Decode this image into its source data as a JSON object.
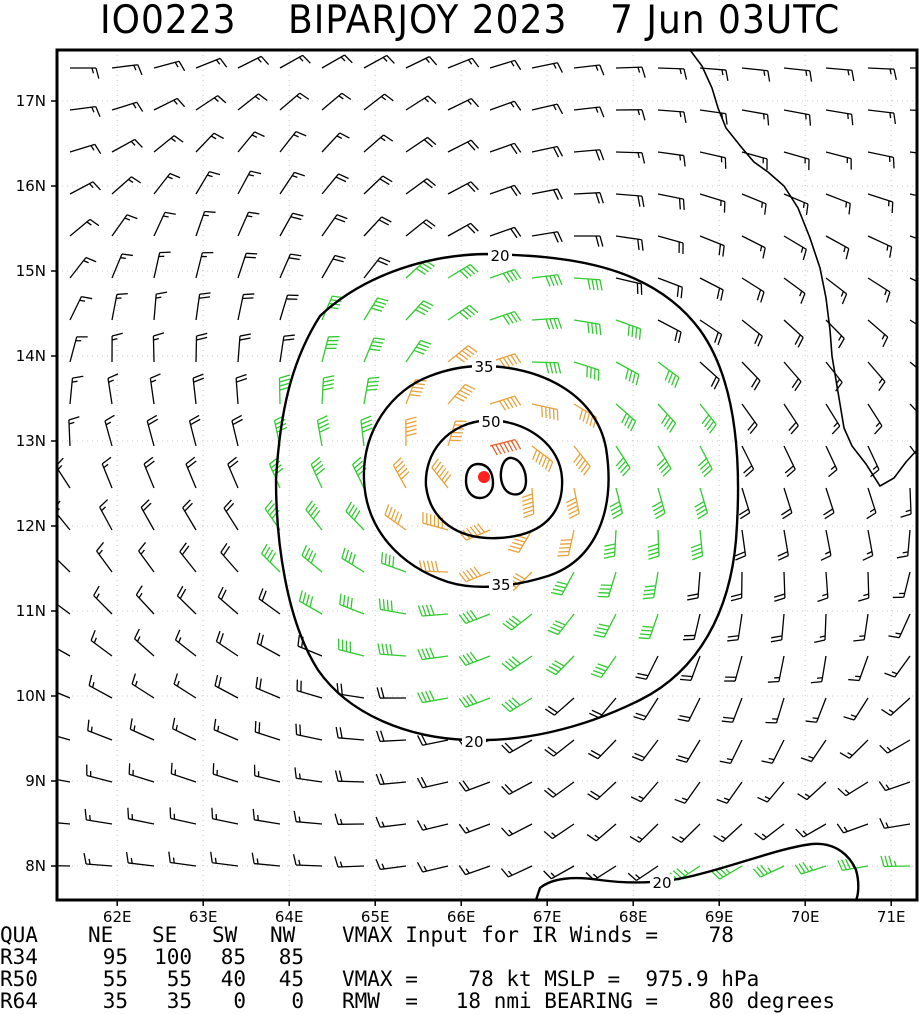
{
  "title": {
    "storm_id": "IO0223",
    "storm_name_year": "BIPARJOY 2023",
    "datetime": "7 Jun 03UTC"
  },
  "map": {
    "lon_labels": [
      "62E",
      "63E",
      "64E",
      "65E",
      "66E",
      "67E",
      "68E",
      "69E",
      "70E",
      "71E"
    ],
    "lat_labels": [
      "17N",
      "16N",
      "15N",
      "14N",
      "13N",
      "12N",
      "11N",
      "10N",
      "9N",
      "8N"
    ],
    "lon_range": [
      61.3,
      71.3
    ],
    "lat_range": [
      7.6,
      17.6
    ],
    "storm_center": {
      "lon": 66.3,
      "lat": 12.6
    },
    "contour_labels": [
      "20",
      "35",
      "50",
      "35",
      "20",
      "20"
    ],
    "colors": {
      "below_34kt": "#000000",
      "34_to_50kt": "#2ecc2e",
      "50_to_64kt": "#e8a23a",
      "64_plus_kt": "#e8622a",
      "core": "#e02020",
      "center": "#ff2020"
    },
    "grid": "dotted"
  },
  "table": {
    "header": [
      "QUA",
      "NE",
      "SE",
      "SW",
      "NW"
    ],
    "rows": [
      [
        "R34",
        "95",
        "100",
        "85",
        "85"
      ],
      [
        "R50",
        "55",
        "55",
        "40",
        "45"
      ],
      [
        "R64",
        "35",
        "35",
        "0",
        "0"
      ]
    ],
    "vmax_input_line": "VMAX Input for IR Winds =    78",
    "vmax_line": "VMAX =    78 kt MSLP =  975.9 hPa",
    "rmw_line": "RMW  =   18 nmi BEARING =    80 degrees"
  }
}
